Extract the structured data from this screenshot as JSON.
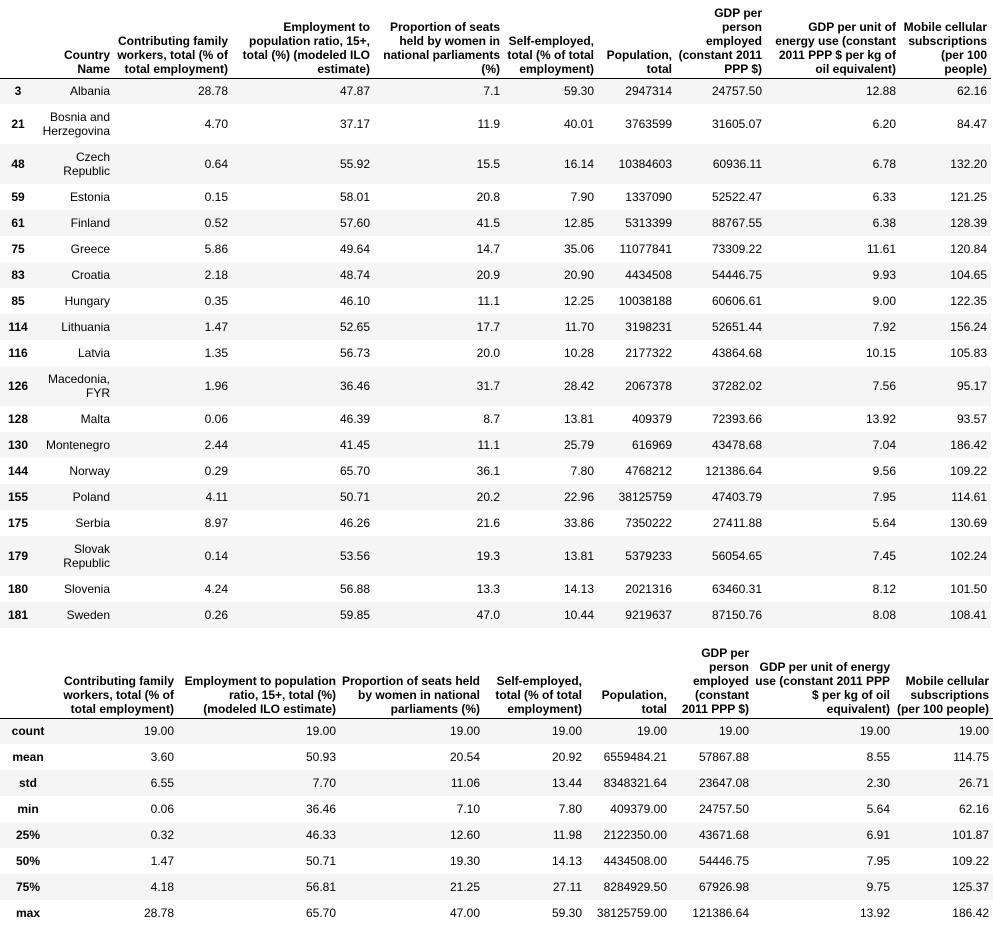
{
  "table": {
    "columns": [
      "Country Name",
      "Contributing family workers, total (% of total employment)",
      "Employment to population ratio, 15+, total (%) (modeled ILO estimate)",
      "Proportion of seats held by women in national parliaments (%)",
      "Self-employed, total (% of total employment)",
      "Population, total",
      "GDP per person employed (constant 2011 PPP $)",
      "GDP per unit of energy use (constant 2011 PPP $ per kg of oil equivalent)",
      "Mobile cellular subscriptions (per 100 people)"
    ],
    "rows": [
      {
        "idx": "3",
        "cells": [
          "Albania",
          "28.78",
          "47.87",
          "7.1",
          "59.30",
          "2947314",
          "24757.50",
          "12.88",
          "62.16"
        ]
      },
      {
        "idx": "21",
        "cells": [
          "Bosnia and Herzegovina",
          "4.70",
          "37.17",
          "11.9",
          "40.01",
          "3763599",
          "31605.07",
          "6.20",
          "84.47"
        ]
      },
      {
        "idx": "48",
        "cells": [
          "Czech Republic",
          "0.64",
          "55.92",
          "15.5",
          "16.14",
          "10384603",
          "60936.11",
          "6.78",
          "132.20"
        ]
      },
      {
        "idx": "59",
        "cells": [
          "Estonia",
          "0.15",
          "58.01",
          "20.8",
          "7.90",
          "1337090",
          "52522.47",
          "6.33",
          "121.25"
        ]
      },
      {
        "idx": "61",
        "cells": [
          "Finland",
          "0.52",
          "57.60",
          "41.5",
          "12.85",
          "5313399",
          "88767.55",
          "6.38",
          "128.39"
        ]
      },
      {
        "idx": "75",
        "cells": [
          "Greece",
          "5.86",
          "49.64",
          "14.7",
          "35.06",
          "11077841",
          "73309.22",
          "11.61",
          "120.84"
        ]
      },
      {
        "idx": "83",
        "cells": [
          "Croatia",
          "2.18",
          "48.74",
          "20.9",
          "20.90",
          "4434508",
          "54446.75",
          "9.93",
          "104.65"
        ]
      },
      {
        "idx": "85",
        "cells": [
          "Hungary",
          "0.35",
          "46.10",
          "11.1",
          "12.25",
          "10038188",
          "60606.61",
          "9.00",
          "122.35"
        ]
      },
      {
        "idx": "114",
        "cells": [
          "Lithuania",
          "1.47",
          "52.65",
          "17.7",
          "11.70",
          "3198231",
          "52651.44",
          "7.92",
          "156.24"
        ]
      },
      {
        "idx": "116",
        "cells": [
          "Latvia",
          "1.35",
          "56.73",
          "20.0",
          "10.28",
          "2177322",
          "43864.68",
          "10.15",
          "105.83"
        ]
      },
      {
        "idx": "126",
        "cells": [
          "Macedonia, FYR",
          "1.96",
          "36.46",
          "31.7",
          "28.42",
          "2067378",
          "37282.02",
          "7.56",
          "95.17"
        ]
      },
      {
        "idx": "128",
        "cells": [
          "Malta",
          "0.06",
          "46.39",
          "8.7",
          "13.81",
          "409379",
          "72393.66",
          "13.92",
          "93.57"
        ]
      },
      {
        "idx": "130",
        "cells": [
          "Montenegro",
          "2.44",
          "41.45",
          "11.1",
          "25.79",
          "616969",
          "43478.68",
          "7.04",
          "186.42"
        ]
      },
      {
        "idx": "144",
        "cells": [
          "Norway",
          "0.29",
          "65.70",
          "36.1",
          "7.80",
          "4768212",
          "121386.64",
          "9.56",
          "109.22"
        ]
      },
      {
        "idx": "155",
        "cells": [
          "Poland",
          "4.11",
          "50.71",
          "20.2",
          "22.96",
          "38125759",
          "47403.79",
          "7.95",
          "114.61"
        ]
      },
      {
        "idx": "175",
        "cells": [
          "Serbia",
          "8.97",
          "46.26",
          "21.6",
          "33.86",
          "7350222",
          "27411.88",
          "5.64",
          "130.69"
        ]
      },
      {
        "idx": "179",
        "cells": [
          "Slovak Republic",
          "0.14",
          "53.56",
          "19.3",
          "13.81",
          "5379233",
          "56054.65",
          "7.45",
          "102.24"
        ]
      },
      {
        "idx": "180",
        "cells": [
          "Slovenia",
          "4.24",
          "56.88",
          "13.3",
          "14.13",
          "2021316",
          "63460.31",
          "8.12",
          "101.50"
        ]
      },
      {
        "idx": "181",
        "cells": [
          "Sweden",
          "0.26",
          "59.85",
          "47.0",
          "10.44",
          "9219637",
          "87150.76",
          "8.08",
          "108.41"
        ]
      }
    ]
  },
  "stats": {
    "columns": [
      "Contributing family workers, total (% of total employment)",
      "Employment to population ratio, 15+, total (%) (modeled ILO estimate)",
      "Proportion of seats held by women in national parliaments (%)",
      "Self-employed, total (% of total employment)",
      "Population, total",
      "GDP per person employed (constant 2011 PPP $)",
      "GDP per unit of energy use (constant 2011 PPP $ per kg of oil equivalent)",
      "Mobile cellular subscriptions (per 100 people)"
    ],
    "rows": [
      {
        "idx": "count",
        "cells": [
          "19.00",
          "19.00",
          "19.00",
          "19.00",
          "19.00",
          "19.00",
          "19.00",
          "19.00"
        ]
      },
      {
        "idx": "mean",
        "cells": [
          "3.60",
          "50.93",
          "20.54",
          "20.92",
          "6559484.21",
          "57867.88",
          "8.55",
          "114.75"
        ]
      },
      {
        "idx": "std",
        "cells": [
          "6.55",
          "7.70",
          "11.06",
          "13.44",
          "8348321.64",
          "23647.08",
          "2.30",
          "26.71"
        ]
      },
      {
        "idx": "min",
        "cells": [
          "0.06",
          "36.46",
          "7.10",
          "7.80",
          "409379.00",
          "24757.50",
          "5.64",
          "62.16"
        ]
      },
      {
        "idx": "25%",
        "cells": [
          "0.32",
          "46.33",
          "12.60",
          "11.98",
          "2122350.00",
          "43671.68",
          "6.91",
          "101.87"
        ]
      },
      {
        "idx": "50%",
        "cells": [
          "1.47",
          "50.71",
          "19.30",
          "14.13",
          "4434508.00",
          "54446.75",
          "7.95",
          "109.22"
        ]
      },
      {
        "idx": "75%",
        "cells": [
          "4.18",
          "56.81",
          "21.25",
          "27.11",
          "8284929.50",
          "67926.98",
          "9.75",
          "125.37"
        ]
      },
      {
        "idx": "max",
        "cells": [
          "28.78",
          "65.70",
          "47.00",
          "59.30",
          "38125759.00",
          "121386.64",
          "13.92",
          "186.42"
        ]
      }
    ]
  }
}
